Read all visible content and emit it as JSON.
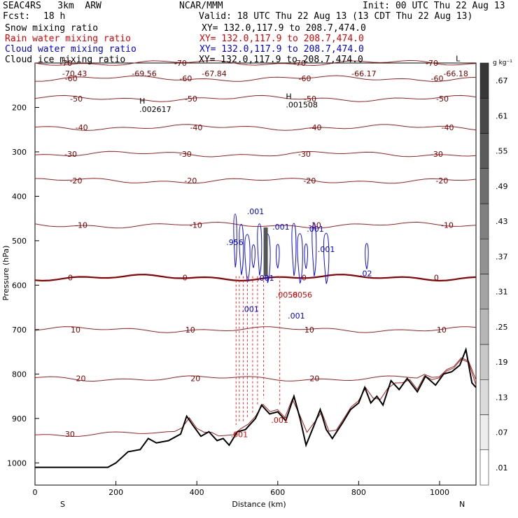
{
  "header": {
    "model": "SEAC4RS   3km  ARW",
    "org": "NCAR/MMM",
    "init": "Init: 00 UTC Thu 22 Aug 13",
    "fcst_label": "Fcst:",
    "fcst_value": "18 h",
    "valid": "Valid: 18 UTC Thu 22 Aug 13 (13 CDT Thu 22 Aug 13)",
    "fields": [
      {
        "name": "Snow mixing ratio",
        "xy": "XY= 132.0,117.9 to 208.7,474.0",
        "color": "#000000"
      },
      {
        "name": "Rain water mixing ratio",
        "xy": "XY= 132.0,117.9 to 208.7,474.0",
        "color": "#ff0000"
      },
      {
        "name": "Cloud water mixing ratio",
        "xy": "XY= 132.0,117.9 to 208.7,474.0",
        "color": "#0000ff"
      },
      {
        "name": "Cloud ice mixing ratio",
        "xy": "XY= 132.0,117.9 to 208.7,474.0",
        "color": "#000000"
      }
    ]
  },
  "colorbar": {
    "unit": "g kg⁻¹",
    "ticks": [
      ".01",
      ".07",
      ".13",
      ".19",
      ".25",
      ".31",
      ".37",
      ".43",
      ".49",
      ".55",
      ".61",
      ".67"
    ]
  },
  "chart_data": {
    "type": "cross-section",
    "xlabel": "Distance (km)",
    "ylabel": "Pressure (hPa)",
    "xlim": [
      0,
      1090
    ],
    "ylim": [
      1050,
      100
    ],
    "x_ticks": [
      0,
      200,
      400,
      600,
      800,
      1000
    ],
    "y_ticks": [
      200,
      300,
      400,
      500,
      600,
      700,
      800,
      900,
      1000
    ],
    "x_end_labels": {
      "left": "S",
      "right": "N"
    },
    "temperature_contours_c": [
      {
        "value": -70,
        "label": "-70",
        "pressure": 100
      },
      {
        "value": -60,
        "label": "-60",
        "pressure": 135
      },
      {
        "value": -50,
        "label": "-50",
        "pressure": 180
      },
      {
        "value": -40,
        "label": "-40",
        "pressure": 245
      },
      {
        "value": -30,
        "label": "-30",
        "pressure": 305
      },
      {
        "value": -20,
        "label": "-20",
        "pressure": 365
      },
      {
        "value": -10,
        "label": "-10",
        "pressure": 465
      },
      {
        "value": 0,
        "label": "0",
        "pressure": 583
      },
      {
        "value": 10,
        "label": "10",
        "pressure": 700
      },
      {
        "value": 20,
        "label": "20",
        "pressure": 810
      },
      {
        "value": 30,
        "label": "30",
        "pressure": 935
      }
    ],
    "top_min_labels": [
      {
        "x": 98,
        "text": "-70.43"
      },
      {
        "x": 270,
        "text": "-69.56"
      },
      {
        "x": 443,
        "text": "-67.84"
      },
      {
        "x": 813,
        "text": "-66.17"
      },
      {
        "x": 1040,
        "text": "-66.18"
      }
    ],
    "extrema_labels": [
      {
        "x": 258,
        "p": 210,
        "mark": "H",
        "text": ".002617"
      },
      {
        "x": 620,
        "p": 200,
        "mark": "H",
        "text": ".001508"
      },
      {
        "x": 1040,
        "p": 115,
        "mark": "L",
        "text": ""
      }
    ],
    "cloud_water_labels": [
      {
        "x": 545,
        "p": 440,
        "text": ".001"
      },
      {
        "x": 608,
        "p": 475,
        "text": ".001"
      },
      {
        "x": 693,
        "p": 480,
        "text": ".001"
      },
      {
        "x": 720,
        "p": 525,
        "text": ".001"
      },
      {
        "x": 494,
        "p": 510,
        "text": ".956"
      },
      {
        "x": 570,
        "p": 590,
        "text": ".001"
      },
      {
        "x": 532,
        "p": 660,
        "text": ".001"
      },
      {
        "x": 646,
        "p": 675,
        "text": ".001"
      },
      {
        "x": 818,
        "p": 580,
        "text": ".02"
      }
    ],
    "rain_water_labels": [
      {
        "x": 505,
        "p": 942,
        "text": ".001"
      },
      {
        "x": 605,
        "p": 910,
        "text": ".001"
      },
      {
        "x": 622,
        "p": 628,
        "text": ".0058"
      },
      {
        "x": 658,
        "p": 628,
        "text": ".0056"
      }
    ],
    "terrain_pressure": [
      [
        0,
        1010
      ],
      [
        180,
        1010
      ],
      [
        200,
        1000
      ],
      [
        230,
        975
      ],
      [
        260,
        970
      ],
      [
        280,
        945
      ],
      [
        300,
        955
      ],
      [
        330,
        950
      ],
      [
        360,
        935
      ],
      [
        375,
        895
      ],
      [
        390,
        915
      ],
      [
        410,
        940
      ],
      [
        430,
        930
      ],
      [
        450,
        950
      ],
      [
        465,
        945
      ],
      [
        480,
        960
      ],
      [
        500,
        930
      ],
      [
        520,
        925
      ],
      [
        545,
        900
      ],
      [
        560,
        870
      ],
      [
        580,
        890
      ],
      [
        600,
        885
      ],
      [
        620,
        905
      ],
      [
        640,
        850
      ],
      [
        655,
        900
      ],
      [
        670,
        960
      ],
      [
        690,
        915
      ],
      [
        705,
        880
      ],
      [
        720,
        925
      ],
      [
        735,
        945
      ],
      [
        760,
        910
      ],
      [
        780,
        880
      ],
      [
        800,
        865
      ],
      [
        815,
        830
      ],
      [
        830,
        865
      ],
      [
        845,
        850
      ],
      [
        860,
        870
      ],
      [
        880,
        815
      ],
      [
        900,
        835
      ],
      [
        920,
        810
      ],
      [
        945,
        840
      ],
      [
        965,
        805
      ],
      [
        990,
        825
      ],
      [
        1010,
        800
      ],
      [
        1030,
        795
      ],
      [
        1050,
        780
      ],
      [
        1065,
        745
      ],
      [
        1080,
        820
      ],
      [
        1090,
        830
      ]
    ]
  }
}
